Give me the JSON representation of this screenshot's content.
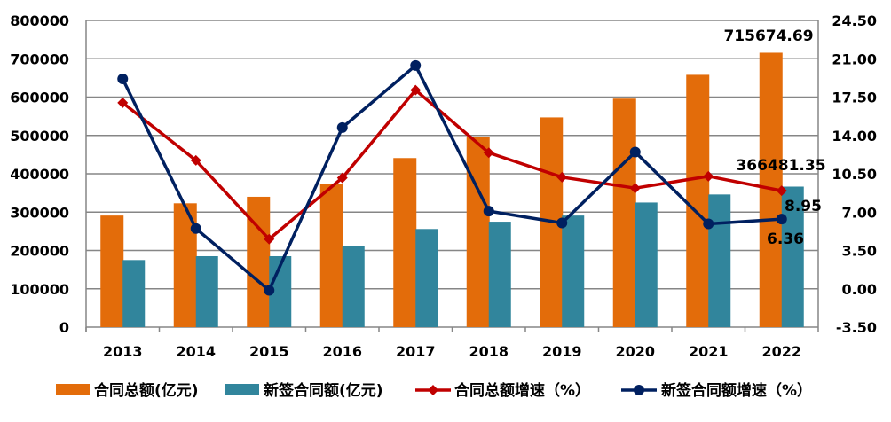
{
  "chart_data": {
    "type": "bar+line",
    "categories": [
      "2013",
      "2014",
      "2015",
      "2016",
      "2017",
      "2018",
      "2019",
      "2020",
      "2021",
      "2022"
    ],
    "series": [
      {
        "name": "合同总额(亿元)",
        "type": "bar",
        "axis": "left",
        "color": "#E36C0A",
        "values": [
          291000,
          323000,
          340000,
          374000,
          441000,
          497000,
          547000,
          596000,
          658000,
          715674.69
        ]
      },
      {
        "name": "新签合同额(亿元)",
        "type": "bar",
        "axis": "left",
        "color": "#31859C",
        "values": [
          175000,
          185000,
          185000,
          212000,
          256000,
          275000,
          291000,
          325000,
          346000,
          366481.35
        ]
      },
      {
        "name": "合同总额增速（%）",
        "type": "line",
        "axis": "right",
        "color": "#C00000",
        "marker": "diamond",
        "values": [
          16.98,
          11.72,
          4.53,
          10.13,
          18.14,
          12.42,
          10.19,
          9.19,
          10.27,
          8.95
        ]
      },
      {
        "name": "新签合同额增速（%）",
        "type": "line",
        "axis": "right",
        "color": "#002060",
        "marker": "circle",
        "values": [
          19.16,
          5.5,
          -0.14,
          14.72,
          20.38,
          7.09,
          6.01,
          12.48,
          5.93,
          6.36
        ]
      }
    ],
    "left_axis": {
      "ylim": [
        0,
        800000
      ],
      "ticks": [
        "0",
        "100000",
        "200000",
        "300000",
        "400000",
        "500000",
        "600000",
        "700000",
        "800000"
      ]
    },
    "right_axis": {
      "ylim": [
        -3.5,
        24.5
      ],
      "ticks": [
        "-3.50",
        "0.00",
        "3.50",
        "7.00",
        "10.50",
        "14.00",
        "17.50",
        "21.00",
        "24.50"
      ]
    },
    "data_labels": [
      {
        "series": 0,
        "index": 9,
        "text": "715674.69"
      },
      {
        "series": 1,
        "index": 9,
        "text": "366481.35"
      },
      {
        "series": 2,
        "index": 9,
        "text": "8.95"
      },
      {
        "series": 3,
        "index": 9,
        "text": "6.36"
      }
    ],
    "grid": true,
    "legend": "bottom"
  }
}
